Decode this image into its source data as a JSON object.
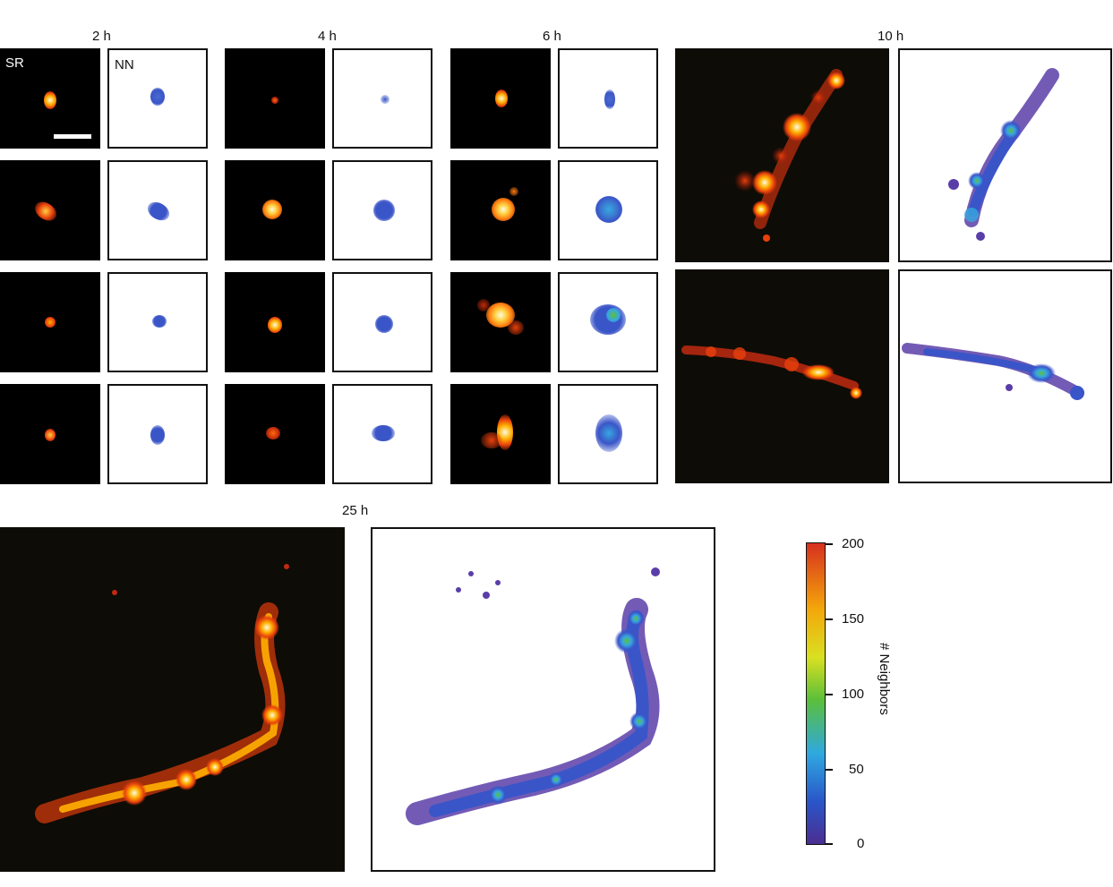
{
  "time_labels": [
    "2 h",
    "4 h",
    "6 h",
    "10 h",
    "25 h"
  ],
  "panel_tags": {
    "sr": "SR",
    "nn": "NN"
  },
  "colorbar": {
    "title": "# Neighbors",
    "ticks": [
      "200",
      "150",
      "100",
      "50",
      "0"
    ],
    "colors": {
      "top": "#d7301f",
      "upper": "#f4a70a",
      "mid_high": "#d9e021",
      "middle": "#5bbf3a",
      "mid_low": "#2fa8e0",
      "lower": "#2a55c8",
      "bottom": "#4b2e91"
    }
  },
  "colors": {
    "sr_core": "#fffbe0",
    "sr_hot": "#ffb000",
    "sr_warm": "#e8400c",
    "nn_low": "#3a55c8",
    "nn_mid": "#37a7e0",
    "nn_high": "#5cc13a",
    "nn_purple": "#5a3ea8"
  }
}
